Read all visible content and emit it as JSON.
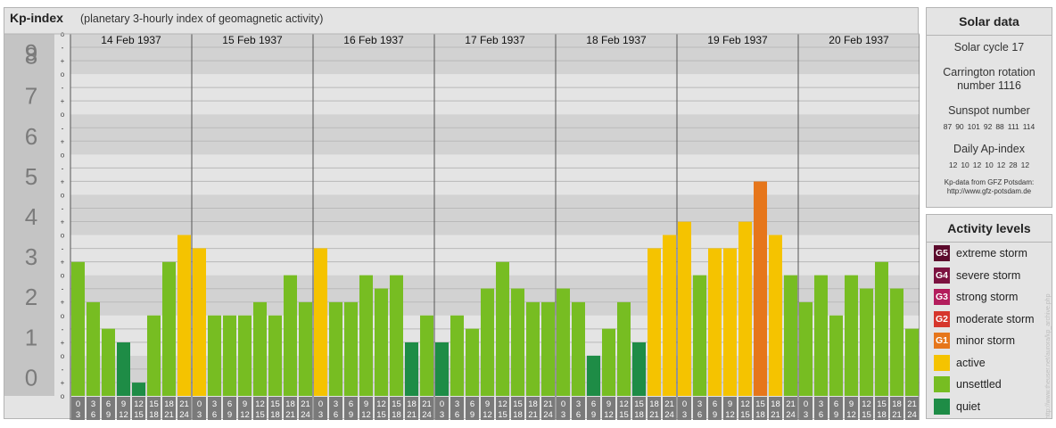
{
  "title": "Kp-index",
  "subtitle": "(planetary 3-hourly index of geomagnetic activity)",
  "chart_data": {
    "type": "bar",
    "title": "Kp-index",
    "subtitle": "(planetary 3-hourly index of geomagnetic activity)",
    "ylim": [
      0,
      9
    ],
    "y_ticks": [
      "0",
      "1",
      "2",
      "3",
      "4",
      "5",
      "6",
      "7",
      "8",
      "9"
    ],
    "minor_ticks": [
      "o",
      "+",
      "-"
    ],
    "days": [
      "14 Feb 1937",
      "15 Feb 1937",
      "16 Feb 1937",
      "17 Feb 1937",
      "18 Feb 1937",
      "19 Feb 1937",
      "20 Feb 1937"
    ],
    "hour_ranges": [
      [
        "0",
        "3"
      ],
      [
        "3",
        "6"
      ],
      [
        "6",
        "9"
      ],
      [
        "9",
        "12"
      ],
      [
        "12",
        "15"
      ],
      [
        "15",
        "18"
      ],
      [
        "18",
        "21"
      ],
      [
        "21",
        "24"
      ]
    ],
    "values": [
      [
        3.33,
        2.33,
        1.67,
        1.33,
        0.33,
        2.0,
        3.33,
        4.0
      ],
      [
        3.67,
        2.0,
        2.0,
        2.0,
        2.33,
        2.0,
        3.0,
        2.33
      ],
      [
        3.67,
        2.33,
        2.33,
        3.0,
        2.67,
        3.0,
        1.33,
        2.0
      ],
      [
        1.33,
        2.0,
        1.67,
        2.67,
        3.33,
        2.67,
        2.33,
        2.33
      ],
      [
        2.67,
        2.33,
        1.0,
        1.67,
        2.33,
        1.33,
        3.67,
        4.0
      ],
      [
        4.33,
        3.0,
        3.67,
        3.67,
        4.33,
        5.33,
        4.0,
        3.0
      ],
      [
        2.33,
        3.0,
        2.0,
        3.0,
        2.67,
        3.33,
        2.67,
        1.67
      ]
    ],
    "colors": {
      "quiet": "#1e8c46",
      "unsettled": "#77bd22",
      "active": "#f5c300",
      "minor_storm": "#e6761b"
    }
  },
  "solar": {
    "heading": "Solar data",
    "cycle": "Solar cycle 17",
    "carrington_line1": "Carrington rotation",
    "carrington_line2": "number 1116",
    "sunspot_label": "Sunspot number",
    "sunspot_values": [
      "87",
      "90",
      "101",
      "92",
      "88",
      "111",
      "114"
    ],
    "ap_label": "Daily Ap-index",
    "ap_values": [
      "12",
      "10",
      "12",
      "10",
      "12",
      "28",
      "12"
    ],
    "credit_line1": "Kp-data from GFZ Potsdam:",
    "credit_line2": "http://www.gfz-potsdam.de"
  },
  "activity": {
    "heading": "Activity levels",
    "items": [
      {
        "code": "G5",
        "label": "extreme storm",
        "color": "#5c0a2c"
      },
      {
        "code": "G4",
        "label": "severe storm",
        "color": "#7c1240"
      },
      {
        "code": "G3",
        "label": "strong storm",
        "color": "#b31d5c"
      },
      {
        "code": "G2",
        "label": "moderate storm",
        "color": "#d6362c"
      },
      {
        "code": "G1",
        "label": "minor storm",
        "color": "#e6761b"
      },
      {
        "code": "",
        "label": "active",
        "color": "#f5c300"
      },
      {
        "code": "",
        "label": "unsettled",
        "color": "#77bd22"
      },
      {
        "code": "",
        "label": "quiet",
        "color": "#1e8c46"
      }
    ]
  },
  "watermark": "http://www.theuser.net/aurora/kp_archive.php"
}
